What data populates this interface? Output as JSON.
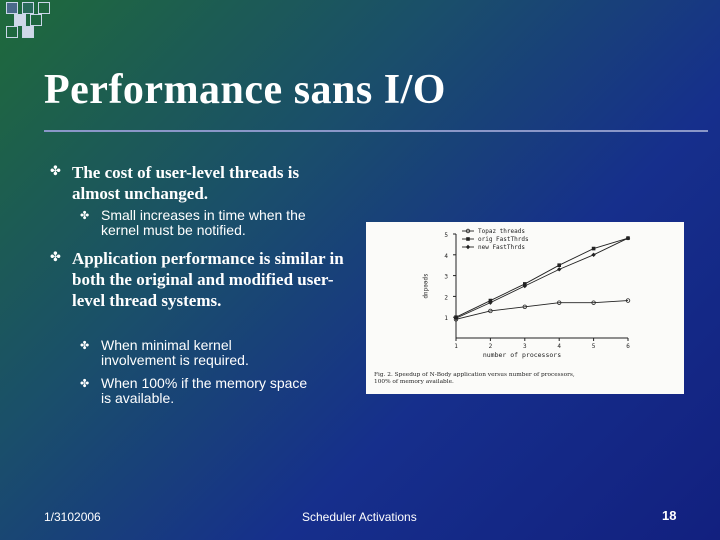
{
  "slide": {
    "title": "Performance sans I/O",
    "bullets": [
      {
        "text": "The cost of user-level threads is almost unchanged.",
        "sub": [
          "Small increases in time when the kernel must be notified."
        ]
      },
      {
        "text": "Application performance is similar in both the original and modified user-level thread systems.",
        "sub": [
          "When minimal kernel involvement is required.",
          "When 100% if the memory space is available."
        ]
      }
    ],
    "footer_left": "1/3102006",
    "footer_center": "Scheduler Activations",
    "page_number": "18"
  },
  "icons": {
    "bullet": "bullet-icon"
  },
  "colors": {
    "background_start": "#1f6a3a",
    "background_end": "#12207f",
    "text": "#ffffff",
    "figure_background": "#fbfbf9"
  },
  "chart_data": {
    "type": "line",
    "title": "",
    "xlabel": "number of processors",
    "ylabel": "speedup",
    "x": [
      1,
      2,
      3,
      4,
      5,
      6
    ],
    "xlim": [
      1,
      6
    ],
    "ylim": [
      0,
      5
    ],
    "yticks": [
      1,
      2,
      3,
      4,
      5
    ],
    "xticks": [
      1,
      2,
      3,
      4,
      5,
      6
    ],
    "series": [
      {
        "name": "Topaz threads",
        "values": [
          0.9,
          1.3,
          1.5,
          1.7,
          1.7,
          1.8
        ]
      },
      {
        "name": "orig FastThrds",
        "values": [
          1.0,
          1.8,
          2.6,
          3.5,
          4.3,
          4.8
        ]
      },
      {
        "name": "new FastThrds",
        "values": [
          0.95,
          1.7,
          2.5,
          3.3,
          4.0,
          4.8
        ]
      }
    ],
    "legend": "top-left",
    "caption": "Fig. 2.   Speedup of N-Body application versus number of processors, 100% of memory available."
  }
}
